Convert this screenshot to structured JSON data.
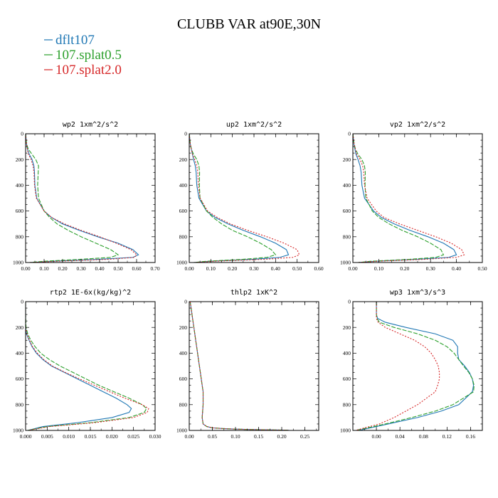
{
  "title": "CLUBB VAR at90E,30N",
  "legend": [
    {
      "name": "dflt107",
      "color": "#1f77b4"
    },
    {
      "name": "107.splat0.5",
      "color": "#2ca02c"
    },
    {
      "name": "107.splat2.0",
      "color": "#d62728"
    }
  ],
  "chart_data": [
    {
      "type": "line",
      "title": "wp2  1xm^2/s^2",
      "xlim": [
        0,
        0.7
      ],
      "ylim": [
        1000,
        0
      ],
      "xticks": [
        "0.00",
        "0.10",
        "0.20",
        "0.30",
        "0.40",
        "0.50",
        "0.60",
        "0.70"
      ],
      "yticks": [
        "0",
        "200",
        "400",
        "600",
        "800",
        "1000"
      ],
      "y": [
        0,
        80,
        120,
        160,
        200,
        250,
        300,
        400,
        500,
        600,
        650,
        700,
        750,
        800,
        850,
        900,
        940,
        960,
        975,
        990,
        1000
      ],
      "series": [
        {
          "values": [
            0,
            0.005,
            0.01,
            0.02,
            0.035,
            0.045,
            0.048,
            0.05,
            0.06,
            0.1,
            0.14,
            0.2,
            0.29,
            0.39,
            0.5,
            0.58,
            0.61,
            0.58,
            0.4,
            0.15,
            0.02
          ]
        },
        {
          "values": [
            0,
            0.005,
            0.015,
            0.035,
            0.055,
            0.07,
            0.068,
            0.065,
            0.07,
            0.1,
            0.13,
            0.17,
            0.23,
            0.3,
            0.38,
            0.46,
            0.5,
            0.46,
            0.3,
            0.1,
            0.02
          ]
        },
        {
          "values": [
            0,
            0.005,
            0.01,
            0.015,
            0.03,
            0.04,
            0.045,
            0.048,
            0.058,
            0.1,
            0.14,
            0.21,
            0.3,
            0.4,
            0.49,
            0.57,
            0.6,
            0.59,
            0.45,
            0.18,
            0.02
          ]
        }
      ]
    },
    {
      "type": "line",
      "title": "up2  1xm^2/s^2",
      "xlim": [
        0,
        0.6
      ],
      "ylim": [
        1000,
        0
      ],
      "xticks": [
        "0.00",
        "0.10",
        "0.20",
        "0.30",
        "0.40",
        "0.50",
        "0.60"
      ],
      "yticks": [
        "0",
        "200",
        "400",
        "600",
        "800",
        "1000"
      ],
      "y": [
        0,
        80,
        120,
        160,
        200,
        250,
        300,
        400,
        500,
        600,
        650,
        700,
        750,
        800,
        850,
        900,
        940,
        960,
        975,
        990,
        1000
      ],
      "series": [
        {
          "values": [
            0,
            0.005,
            0.01,
            0.015,
            0.02,
            0.028,
            0.032,
            0.035,
            0.045,
            0.08,
            0.12,
            0.18,
            0.25,
            0.33,
            0.4,
            0.45,
            0.46,
            0.42,
            0.3,
            0.1,
            0.02
          ]
        },
        {
          "values": [
            0,
            0.005,
            0.01,
            0.02,
            0.035,
            0.045,
            0.048,
            0.047,
            0.05,
            0.08,
            0.11,
            0.15,
            0.2,
            0.27,
            0.33,
            0.38,
            0.4,
            0.36,
            0.25,
            0.08,
            0.02
          ]
        },
        {
          "values": [
            0,
            0.005,
            0.01,
            0.015,
            0.025,
            0.035,
            0.04,
            0.042,
            0.05,
            0.085,
            0.13,
            0.19,
            0.27,
            0.36,
            0.44,
            0.5,
            0.51,
            0.48,
            0.35,
            0.12,
            0.02
          ]
        }
      ]
    },
    {
      "type": "line",
      "title": "vp2  1xm^2/s^2",
      "xlim": [
        0,
        0.5
      ],
      "ylim": [
        1000,
        0
      ],
      "xticks": [
        "0.00",
        "0.10",
        "0.20",
        "0.30",
        "0.40",
        "0.50"
      ],
      "yticks": [
        "0",
        "200",
        "400",
        "600",
        "800",
        "1000"
      ],
      "y": [
        0,
        80,
        120,
        160,
        200,
        250,
        300,
        400,
        500,
        600,
        650,
        700,
        750,
        800,
        850,
        900,
        940,
        960,
        975,
        990,
        1000
      ],
      "series": [
        {
          "values": [
            0,
            0.004,
            0.008,
            0.012,
            0.02,
            0.028,
            0.032,
            0.035,
            0.045,
            0.08,
            0.11,
            0.16,
            0.22,
            0.29,
            0.35,
            0.39,
            0.4,
            0.37,
            0.25,
            0.09,
            0.02
          ]
        },
        {
          "values": [
            0,
            0.005,
            0.01,
            0.02,
            0.035,
            0.045,
            0.048,
            0.047,
            0.05,
            0.075,
            0.1,
            0.14,
            0.19,
            0.25,
            0.3,
            0.34,
            0.35,
            0.32,
            0.22,
            0.07,
            0.02
          ]
        },
        {
          "values": [
            0,
            0.005,
            0.01,
            0.015,
            0.028,
            0.038,
            0.042,
            0.045,
            0.055,
            0.09,
            0.12,
            0.18,
            0.25,
            0.32,
            0.38,
            0.42,
            0.43,
            0.4,
            0.28,
            0.1,
            0.02
          ]
        }
      ]
    },
    {
      "type": "line",
      "title": "rtp2  1E-6x(kg/kg)^2",
      "xlim": [
        0,
        0.03
      ],
      "ylim": [
        1000,
        0
      ],
      "xticks": [
        "0.000",
        "0.005",
        "0.010",
        "0.015",
        "0.020",
        "0.025",
        "0.030"
      ],
      "yticks": [
        "0",
        "200",
        "400",
        "600",
        "800",
        "1000"
      ],
      "y": [
        0,
        100,
        200,
        250,
        300,
        350,
        400,
        450,
        500,
        550,
        600,
        650,
        700,
        750,
        800,
        830,
        860,
        900,
        940,
        970,
        1000
      ],
      "series": [
        {
          "values": [
            0,
            0,
            0,
            0.0002,
            0.0008,
            0.0015,
            0.0025,
            0.004,
            0.006,
            0.009,
            0.012,
            0.015,
            0.018,
            0.021,
            0.0235,
            0.0245,
            0.024,
            0.02,
            0.012,
            0.004,
            0.0005
          ]
        },
        {
          "values": [
            0,
            0,
            0.0001,
            0.0005,
            0.0012,
            0.0022,
            0.0035,
            0.0055,
            0.008,
            0.011,
            0.014,
            0.017,
            0.0205,
            0.024,
            0.027,
            0.028,
            0.0275,
            0.024,
            0.015,
            0.005,
            0.0005
          ]
        },
        {
          "values": [
            0,
            0,
            0,
            0.0003,
            0.0009,
            0.0016,
            0.0027,
            0.0042,
            0.0062,
            0.0092,
            0.0125,
            0.016,
            0.0195,
            0.023,
            0.027,
            0.0285,
            0.0282,
            0.025,
            0.016,
            0.0055,
            0.0005
          ]
        }
      ]
    },
    {
      "type": "line",
      "title": "thlp2  1xK^2",
      "xlim": [
        0,
        0.28
      ],
      "ylim": [
        1000,
        0
      ],
      "xticks": [
        "0.00",
        "0.05",
        "0.10",
        "0.15",
        "0.20",
        "0.25"
      ],
      "yticks": [
        "0",
        "200",
        "400",
        "600",
        "800",
        "1000"
      ],
      "y": [
        0,
        100,
        200,
        300,
        400,
        500,
        600,
        700,
        800,
        900,
        950,
        970,
        980,
        985,
        990,
        993,
        995,
        997,
        998,
        999,
        1000
      ],
      "series": [
        {
          "values": [
            0.002,
            0.006,
            0.01,
            0.014,
            0.018,
            0.022,
            0.026,
            0.03,
            0.03,
            0.028,
            0.03,
            0.038,
            0.05,
            0.07,
            0.1,
            0.13,
            0.16,
            0.19,
            0.21,
            0.215,
            0.215
          ]
        },
        {
          "values": [
            0.002,
            0.006,
            0.01,
            0.014,
            0.018,
            0.022,
            0.026,
            0.03,
            0.03,
            0.028,
            0.03,
            0.038,
            0.05,
            0.07,
            0.1,
            0.13,
            0.16,
            0.19,
            0.21,
            0.215,
            0.215
          ]
        },
        {
          "values": [
            0.002,
            0.006,
            0.01,
            0.014,
            0.018,
            0.022,
            0.026,
            0.03,
            0.03,
            0.028,
            0.03,
            0.038,
            0.05,
            0.07,
            0.1,
            0.13,
            0.16,
            0.19,
            0.21,
            0.215,
            0.215
          ]
        }
      ]
    },
    {
      "type": "line",
      "title": "wp3  1xm^3/s^3",
      "xlim": [
        -0.04,
        0.18
      ],
      "ylim": [
        1000,
        0
      ],
      "xticks": [
        "0.00",
        "0.04",
        "0.08",
        "0.12",
        "0.16"
      ],
      "xtick_values": [
        0,
        0.04,
        0.08,
        0.12,
        0.16
      ],
      "yticks": [
        "0",
        "200",
        "400",
        "600",
        "800",
        "1000"
      ],
      "y": [
        0,
        100,
        130,
        160,
        200,
        250,
        300,
        350,
        400,
        450,
        500,
        550,
        600,
        650,
        700,
        800,
        850,
        900,
        950,
        980,
        1000
      ],
      "series": [
        {
          "values": [
            0,
            0,
            0.002,
            0.015,
            0.05,
            0.1,
            0.13,
            0.138,
            0.138,
            0.14,
            0.15,
            0.158,
            0.163,
            0.165,
            0.163,
            0.14,
            0.11,
            0.07,
            0.02,
            -0.01,
            -0.03
          ]
        },
        {
          "values": [
            0,
            0,
            0.001,
            0.005,
            0.03,
            0.07,
            0.1,
            0.12,
            0.132,
            0.14,
            0.148,
            0.157,
            0.163,
            0.166,
            0.165,
            0.13,
            0.1,
            0.06,
            0.015,
            -0.015,
            -0.035
          ]
        },
        {
          "values": [
            0,
            0,
            0,
            0.003,
            0.015,
            0.04,
            0.065,
            0.082,
            0.093,
            0.1,
            0.105,
            0.107,
            0.107,
            0.104,
            0.1,
            0.07,
            0.05,
            0.03,
            0.005,
            -0.02,
            -0.035
          ]
        }
      ]
    }
  ]
}
